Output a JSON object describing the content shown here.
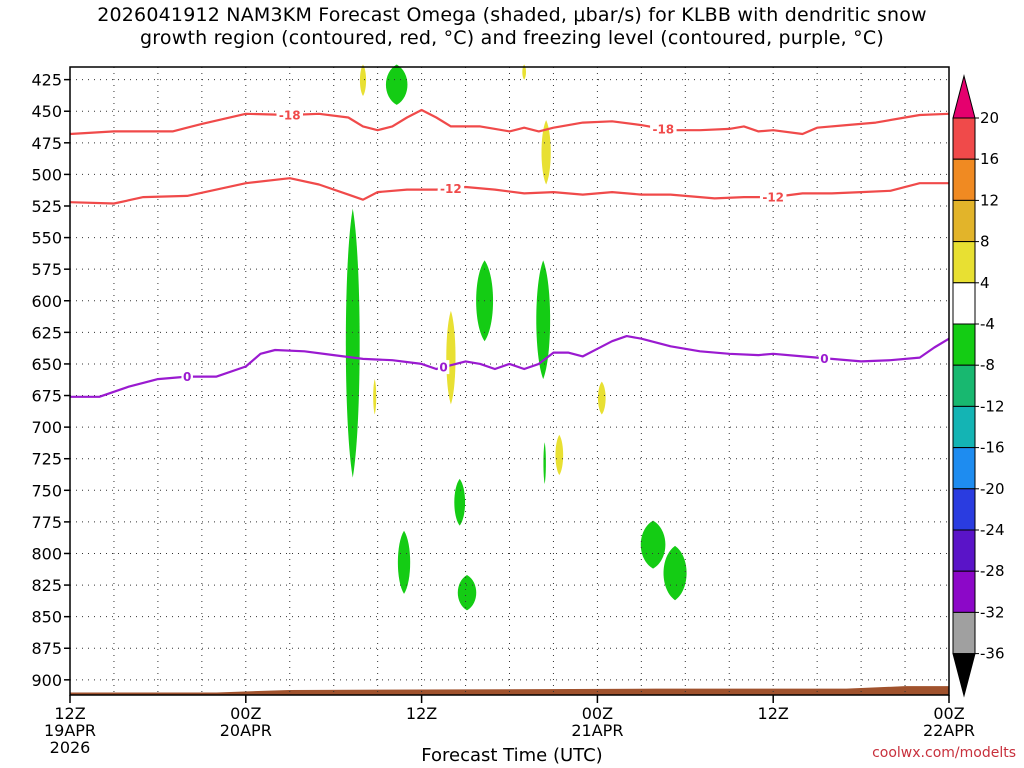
{
  "title": {
    "line1": "2026041912 NAM3KM Forecast Omega (shaded, μbar/s) for KLBB with dendritic snow",
    "line2": "growth region (contoured, red, °C) and freezing level (contoured, purple, °C)"
  },
  "xlabel": "Forecast Time (UTC)",
  "credit": "coolwx.com/modelts",
  "chart_data": {
    "type": "time-height cross-section",
    "x_range_hours": [
      0,
      60
    ],
    "y_range_hPa": [
      415,
      912
    ],
    "y_ticks": [
      "425",
      "450",
      "475",
      "500",
      "525",
      "550",
      "575",
      "600",
      "625",
      "650",
      "675",
      "700",
      "725",
      "750",
      "775",
      "800",
      "825",
      "850",
      "875",
      "900"
    ],
    "x_ticks": [
      {
        "hour": 0,
        "label": "12Z",
        "sub": "19APR",
        "sub2": "2026"
      },
      {
        "hour": 12,
        "label": "00Z",
        "sub": "20APR",
        "sub2": ""
      },
      {
        "hour": 24,
        "label": "12Z",
        "sub": "",
        "sub2": ""
      },
      {
        "hour": 36,
        "label": "00Z",
        "sub": "21APR",
        "sub2": ""
      },
      {
        "hour": 48,
        "label": "12Z",
        "sub": "",
        "sub2": ""
      },
      {
        "hour": 60,
        "label": "00Z",
        "sub": "22APR",
        "sub2": ""
      }
    ],
    "grid": true,
    "colorbar": {
      "labels": [
        "20",
        "16",
        "12",
        "8",
        "4",
        "-4",
        "-8",
        "-12",
        "-16",
        "-20",
        "-24",
        "-28",
        "-32",
        "-36"
      ],
      "colors": [
        "#e5006e",
        "#f04a4a",
        "#f08a22",
        "#e2b42a",
        "#e8e032",
        "#ffffff",
        "#14cc14",
        "#18b870",
        "#14b4b4",
        "#1e8cf0",
        "#2a3ce0",
        "#5a14c8",
        "#8c08c8",
        "#a0a0a0",
        "#000000"
      ]
    },
    "series": [
      {
        "name": "-18",
        "color": "#f04a4a",
        "points": [
          [
            0,
            468
          ],
          [
            3,
            466
          ],
          [
            7,
            466
          ],
          [
            9,
            460
          ],
          [
            12,
            452
          ],
          [
            15,
            453
          ],
          [
            17,
            452
          ],
          [
            19,
            455
          ],
          [
            20,
            462
          ],
          [
            21,
            465
          ],
          [
            22,
            462
          ],
          [
            23,
            455
          ],
          [
            24,
            449
          ],
          [
            25,
            455
          ],
          [
            26,
            462
          ],
          [
            28,
            462
          ],
          [
            30,
            466
          ],
          [
            31,
            463
          ],
          [
            32,
            466
          ],
          [
            33,
            463
          ],
          [
            35,
            459
          ],
          [
            37,
            458
          ],
          [
            39,
            461
          ],
          [
            40,
            463
          ],
          [
            41,
            465
          ],
          [
            43,
            465
          ],
          [
            45,
            464
          ],
          [
            46,
            462
          ],
          [
            47,
            466
          ],
          [
            48,
            465
          ],
          [
            50,
            468
          ],
          [
            51,
            463
          ],
          [
            53,
            461
          ],
          [
            55,
            459
          ],
          [
            57,
            455
          ],
          [
            58,
            453
          ],
          [
            60,
            452
          ]
        ]
      },
      {
        "name": "-12",
        "color": "#f04a4a",
        "points": [
          [
            0,
            522
          ],
          [
            3,
            523
          ],
          [
            5,
            518
          ],
          [
            8,
            517
          ],
          [
            10,
            512
          ],
          [
            12,
            507
          ],
          [
            15,
            503
          ],
          [
            17,
            508
          ],
          [
            19,
            516
          ],
          [
            20,
            520
          ],
          [
            21,
            514
          ],
          [
            23,
            512
          ],
          [
            25,
            512
          ],
          [
            27,
            510
          ],
          [
            29,
            512
          ],
          [
            31,
            515
          ],
          [
            33,
            514
          ],
          [
            35,
            516
          ],
          [
            37,
            514
          ],
          [
            39,
            516
          ],
          [
            41,
            516
          ],
          [
            43,
            518
          ],
          [
            44,
            519
          ],
          [
            46,
            518
          ],
          [
            48,
            518
          ],
          [
            50,
            515
          ],
          [
            52,
            515
          ],
          [
            54,
            514
          ],
          [
            56,
            513
          ],
          [
            58,
            507
          ],
          [
            60,
            507
          ]
        ]
      },
      {
        "name": "0",
        "color": "#9a1ad0",
        "points": [
          [
            0,
            676
          ],
          [
            2,
            676
          ],
          [
            4,
            668
          ],
          [
            6,
            662
          ],
          [
            8,
            660
          ],
          [
            10,
            660
          ],
          [
            12,
            652
          ],
          [
            13,
            642
          ],
          [
            14,
            639
          ],
          [
            16,
            640
          ],
          [
            18,
            643
          ],
          [
            20,
            646
          ],
          [
            22,
            647
          ],
          [
            24,
            650
          ],
          [
            25,
            654
          ],
          [
            26,
            651
          ],
          [
            27,
            648
          ],
          [
            28,
            650
          ],
          [
            29,
            654
          ],
          [
            30,
            650
          ],
          [
            31,
            654
          ],
          [
            32,
            650
          ],
          [
            33,
            641
          ],
          [
            34,
            641
          ],
          [
            35,
            644
          ],
          [
            36,
            638
          ],
          [
            37,
            632
          ],
          [
            38,
            628
          ],
          [
            39,
            630
          ],
          [
            41,
            636
          ],
          [
            43,
            640
          ],
          [
            45,
            642
          ],
          [
            47,
            643
          ],
          [
            48,
            642
          ],
          [
            50,
            644
          ],
          [
            52,
            646
          ],
          [
            54,
            648
          ],
          [
            56,
            647
          ],
          [
            58,
            645
          ],
          [
            59,
            637
          ],
          [
            60,
            630
          ]
        ]
      }
    ],
    "omega_blobs": [
      {
        "color": "#14cc14",
        "cx": 19.3,
        "p_top": 527,
        "p_bot": 740,
        "halfwidth_h": 0.45
      },
      {
        "color": "#14cc14",
        "cx": 22.3,
        "p_top": 413,
        "p_bot": 445,
        "halfwidth_h": 0.7
      },
      {
        "color": "#e8e032",
        "cx": 20.0,
        "p_top": 413,
        "p_bot": 438,
        "halfwidth_h": 0.2
      },
      {
        "color": "#e8e032",
        "cx": 31.0,
        "p_top": 413,
        "p_bot": 425,
        "halfwidth_h": 0.12
      },
      {
        "color": "#e8e032",
        "cx": 32.5,
        "p_top": 457,
        "p_bot": 508,
        "halfwidth_h": 0.3
      },
      {
        "color": "#14cc14",
        "cx": 28.3,
        "p_top": 568,
        "p_bot": 632,
        "halfwidth_h": 0.55
      },
      {
        "color": "#14cc14",
        "cx": 32.3,
        "p_top": 568,
        "p_bot": 662,
        "halfwidth_h": 0.45
      },
      {
        "color": "#e8e032",
        "cx": 26.0,
        "p_top": 608,
        "p_bot": 682,
        "halfwidth_h": 0.3
      },
      {
        "color": "#e8e032",
        "cx": 20.8,
        "p_top": 662,
        "p_bot": 690,
        "halfwidth_h": 0.1
      },
      {
        "color": "#e8e032",
        "cx": 36.3,
        "p_top": 664,
        "p_bot": 690,
        "halfwidth_h": 0.25
      },
      {
        "color": "#e8e032",
        "cx": 33.4,
        "p_top": 706,
        "p_bot": 738,
        "halfwidth_h": 0.25
      },
      {
        "color": "#14cc14",
        "cx": 32.4,
        "p_top": 712,
        "p_bot": 745,
        "halfwidth_h": 0.08
      },
      {
        "color": "#14cc14",
        "cx": 26.6,
        "p_top": 741,
        "p_bot": 778,
        "halfwidth_h": 0.35
      },
      {
        "color": "#14cc14",
        "cx": 22.8,
        "p_top": 782,
        "p_bot": 832,
        "halfwidth_h": 0.4
      },
      {
        "color": "#14cc14",
        "cx": 27.1,
        "p_top": 817,
        "p_bot": 845,
        "halfwidth_h": 0.6
      },
      {
        "color": "#14cc14",
        "cx": 39.8,
        "p_top": 774,
        "p_bot": 812,
        "halfwidth_h": 0.8
      },
      {
        "color": "#14cc14",
        "cx": 41.3,
        "p_top": 794,
        "p_bot": 837,
        "halfwidth_h": 0.75
      }
    ],
    "terrain": {
      "color": "#a0522d",
      "p_top_start": 910,
      "p_top_end": 905
    }
  }
}
